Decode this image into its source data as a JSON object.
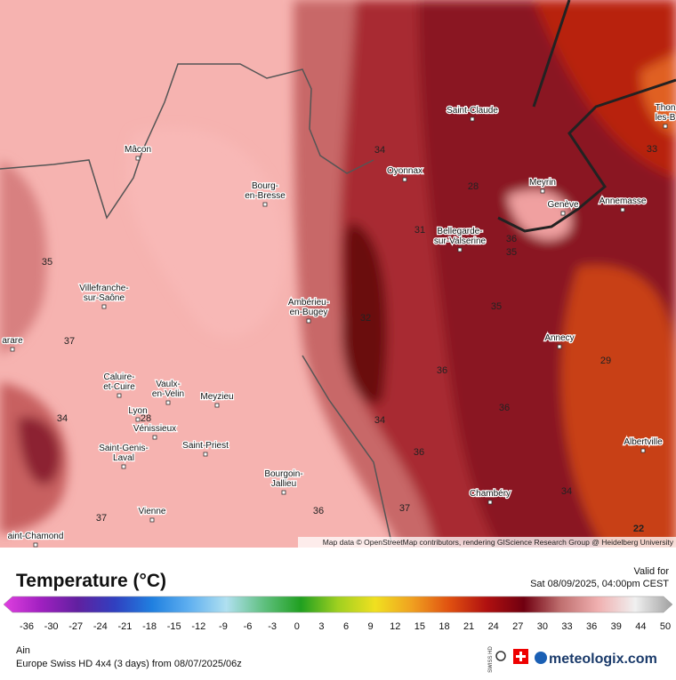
{
  "map": {
    "cities": [
      {
        "lines": [
          "Mâcon"
        ]
      },
      {
        "lines": [
          "Bourg-",
          "en-Bresse"
        ]
      },
      {
        "lines": [
          "Villefranche-",
          "sur-Saône"
        ]
      },
      {
        "lines": [
          "Ambérieu-",
          "en-Bugey"
        ]
      },
      {
        "lines": [
          "Caluire-",
          "et-Cuire"
        ]
      },
      {
        "lines": [
          "Vaulx-",
          "en-Velin"
        ]
      },
      {
        "lines": [
          "Meyzieu"
        ]
      },
      {
        "lines": [
          "Lyon"
        ]
      },
      {
        "lines": [
          "Vénissieux"
        ]
      },
      {
        "lines": [
          "Saint-Genis-",
          "Laval"
        ]
      },
      {
        "lines": [
          "Saint-Priest"
        ]
      },
      {
        "lines": [
          "Bourgoin-",
          "Jallieu"
        ]
      },
      {
        "lines": [
          "Vienne"
        ]
      },
      {
        "lines": [
          "aint-Chamond"
        ]
      },
      {
        "lines": [
          "arare"
        ]
      },
      {
        "lines": [
          "Saint-Claude"
        ]
      },
      {
        "lines": [
          "Oyonnax"
        ]
      },
      {
        "lines": [
          "Meyrin"
        ]
      },
      {
        "lines": [
          "Genève"
        ]
      },
      {
        "lines": [
          "Annemasse"
        ]
      },
      {
        "lines": [
          "Bellegarde-",
          "sur-Valserine"
        ]
      },
      {
        "lines": [
          "Annecy"
        ]
      },
      {
        "lines": [
          "Albertville"
        ]
      },
      {
        "lines": [
          "Chambéry"
        ]
      },
      {
        "lines": [
          "Thon",
          "les-B"
        ]
      }
    ],
    "contour_labels": [
      34,
      28,
      31,
      36,
      35,
      35,
      32,
      35,
      37,
      36,
      34,
      34,
      36,
      36,
      37,
      36,
      37,
      28,
      29,
      34,
      33,
      22
    ],
    "attribution": "Map data © OpenStreetMap contributors, rendering GIScience Research Group @ Heidelberg University"
  },
  "legend": {
    "title": "Temperature (°C)",
    "valid_label": "Valid for",
    "valid_time": "Sat 08/09/2025, 04:00pm CEST",
    "ticks": [
      -36,
      -30,
      -27,
      -24,
      -21,
      -18,
      -15,
      -12,
      -9,
      -6,
      -3,
      0,
      3,
      6,
      9,
      12,
      15,
      18,
      21,
      24,
      27,
      30,
      33,
      36,
      39,
      44,
      50
    ],
    "colors": [
      "#e040e0",
      "#a020c0",
      "#6020a0",
      "#3040c0",
      "#2080e0",
      "#60b0f0",
      "#b0e0f0",
      "#60c080",
      "#20a020",
      "#a0d020",
      "#f0e020",
      "#f0a020",
      "#e05010",
      "#b01010",
      "#700010",
      "#c07070",
      "#f0b0b0",
      "#f0f0f0",
      "#a0a0a0"
    ]
  },
  "footer": {
    "region": "Ain",
    "model": "Europe Swiss HD 4x4 (3 days) from 08/07/2025/06z",
    "brand": "meteologix.com",
    "badge": "SWISS HD"
  }
}
